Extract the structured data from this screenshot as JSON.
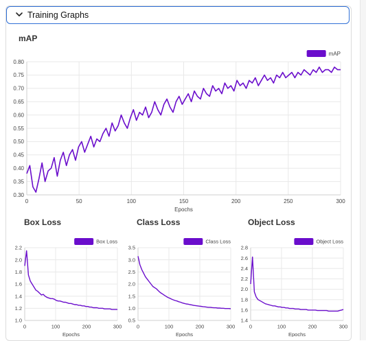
{
  "header": {
    "label": "Training Graphs",
    "expanded": true
  },
  "colors": {
    "series": "#6a0dcc",
    "grid": "#e8e8e8",
    "axis": "#444444",
    "accent": "#2f6fd6"
  },
  "icons": {
    "toggle": "chevron-down-icon"
  },
  "chart_data": [
    {
      "type": "line",
      "title": "mAP",
      "xlabel": "Epochs",
      "ylabel": "",
      "legend": "top-right",
      "series": [
        {
          "name": "mAP",
          "values": [
            0.38,
            0.41,
            0.33,
            0.31,
            0.36,
            0.42,
            0.35,
            0.39,
            0.4,
            0.44,
            0.37,
            0.43,
            0.46,
            0.41,
            0.45,
            0.47,
            0.43,
            0.48,
            0.5,
            0.46,
            0.49,
            0.52,
            0.48,
            0.51,
            0.5,
            0.53,
            0.55,
            0.52,
            0.57,
            0.54,
            0.56,
            0.6,
            0.57,
            0.55,
            0.59,
            0.62,
            0.58,
            0.61,
            0.6,
            0.63,
            0.59,
            0.61,
            0.65,
            0.62,
            0.6,
            0.64,
            0.66,
            0.63,
            0.61,
            0.65,
            0.67,
            0.64,
            0.66,
            0.68,
            0.65,
            0.69,
            0.67,
            0.66,
            0.7,
            0.68,
            0.67,
            0.71,
            0.69,
            0.7,
            0.68,
            0.72,
            0.7,
            0.71,
            0.69,
            0.73,
            0.71,
            0.72,
            0.7,
            0.73,
            0.72,
            0.74,
            0.71,
            0.73,
            0.75,
            0.73,
            0.74,
            0.72,
            0.75,
            0.74,
            0.76,
            0.74,
            0.75,
            0.76,
            0.74,
            0.76,
            0.75,
            0.77,
            0.76,
            0.75,
            0.77,
            0.76,
            0.78,
            0.76,
            0.77,
            0.77,
            0.76,
            0.78,
            0.77,
            0.77
          ]
        }
      ],
      "ylim": [
        0.3,
        0.8
      ],
      "xlim": [
        0,
        300
      ],
      "xticks": [
        0,
        50,
        100,
        150,
        200,
        250,
        300
      ],
      "yticks": [
        "0.30",
        "0.35",
        "0.40",
        "0.45",
        "0.50",
        "0.55",
        "0.60",
        "0.65",
        "0.70",
        "0.75",
        "0.80"
      ],
      "grid": true
    },
    {
      "type": "line",
      "title": "Box Loss",
      "xlabel": "Epochs",
      "ylabel": "",
      "legend": "top-right",
      "series": [
        {
          "name": "Box Loss",
          "values": [
            1.9,
            2.15,
            1.75,
            1.65,
            1.6,
            1.55,
            1.5,
            1.48,
            1.45,
            1.42,
            1.43,
            1.4,
            1.38,
            1.37,
            1.36,
            1.36,
            1.35,
            1.33,
            1.32,
            1.32,
            1.31,
            1.3,
            1.3,
            1.29,
            1.28,
            1.28,
            1.27,
            1.26,
            1.26,
            1.25,
            1.25,
            1.24,
            1.24,
            1.23,
            1.23,
            1.22,
            1.22,
            1.21,
            1.21,
            1.21,
            1.2,
            1.2,
            1.2,
            1.19,
            1.19,
            1.19,
            1.19,
            1.18,
            1.18,
            1.18,
            1.18
          ]
        }
      ],
      "ylim": [
        1.0,
        2.2
      ],
      "xlim": [
        0,
        300
      ],
      "xticks": [
        0,
        100,
        200,
        300
      ],
      "yticks": [
        "1.0",
        "1.2",
        "1.4",
        "1.6",
        "1.8",
        "2.0",
        "2.2"
      ],
      "grid": true
    },
    {
      "type": "line",
      "title": "Class Loss",
      "xlabel": "Epochs",
      "ylabel": "",
      "legend": "top-right",
      "series": [
        {
          "name": "Class Loss",
          "values": [
            3.15,
            2.8,
            2.6,
            2.45,
            2.3,
            2.2,
            2.1,
            2.0,
            1.9,
            1.85,
            1.8,
            1.72,
            1.65,
            1.6,
            1.55,
            1.5,
            1.45,
            1.42,
            1.38,
            1.35,
            1.32,
            1.3,
            1.27,
            1.25,
            1.22,
            1.2,
            1.18,
            1.17,
            1.15,
            1.14,
            1.12,
            1.11,
            1.1,
            1.09,
            1.08,
            1.07,
            1.06,
            1.05,
            1.04,
            1.04,
            1.03,
            1.02,
            1.02,
            1.01,
            1.01,
            1.0,
            1.0,
            0.99,
            0.99,
            0.99,
            0.98
          ]
        }
      ],
      "ylim": [
        0.5,
        3.5
      ],
      "xlim": [
        0,
        300
      ],
      "xticks": [
        0,
        100,
        200,
        300
      ],
      "yticks": [
        "0.5",
        "1.0",
        "1.5",
        "2.0",
        "2.5",
        "3.0",
        "3.5"
      ],
      "grid": true
    },
    {
      "type": "line",
      "title": "Object Loss",
      "xlabel": "Epochs",
      "ylabel": "",
      "legend": "top-right",
      "series": [
        {
          "name": "Object Loss",
          "values": [
            2.1,
            2.62,
            1.95,
            1.85,
            1.8,
            1.78,
            1.76,
            1.74,
            1.72,
            1.71,
            1.7,
            1.69,
            1.68,
            1.68,
            1.67,
            1.66,
            1.66,
            1.65,
            1.65,
            1.64,
            1.64,
            1.63,
            1.63,
            1.63,
            1.62,
            1.62,
            1.62,
            1.61,
            1.61,
            1.61,
            1.61,
            1.6,
            1.6,
            1.6,
            1.6,
            1.6,
            1.59,
            1.59,
            1.59,
            1.59,
            1.59,
            1.59,
            1.58,
            1.58,
            1.58,
            1.58,
            1.58,
            1.58,
            1.59,
            1.6,
            1.61
          ]
        }
      ],
      "ylim": [
        1.4,
        2.8
      ],
      "xlim": [
        0,
        300
      ],
      "xticks": [
        0,
        100,
        200,
        300
      ],
      "yticks": [
        "1.4",
        "1.6",
        "1.8",
        "2.0",
        "2.2",
        "2.4",
        "2.6",
        "2.8"
      ],
      "grid": true
    }
  ]
}
